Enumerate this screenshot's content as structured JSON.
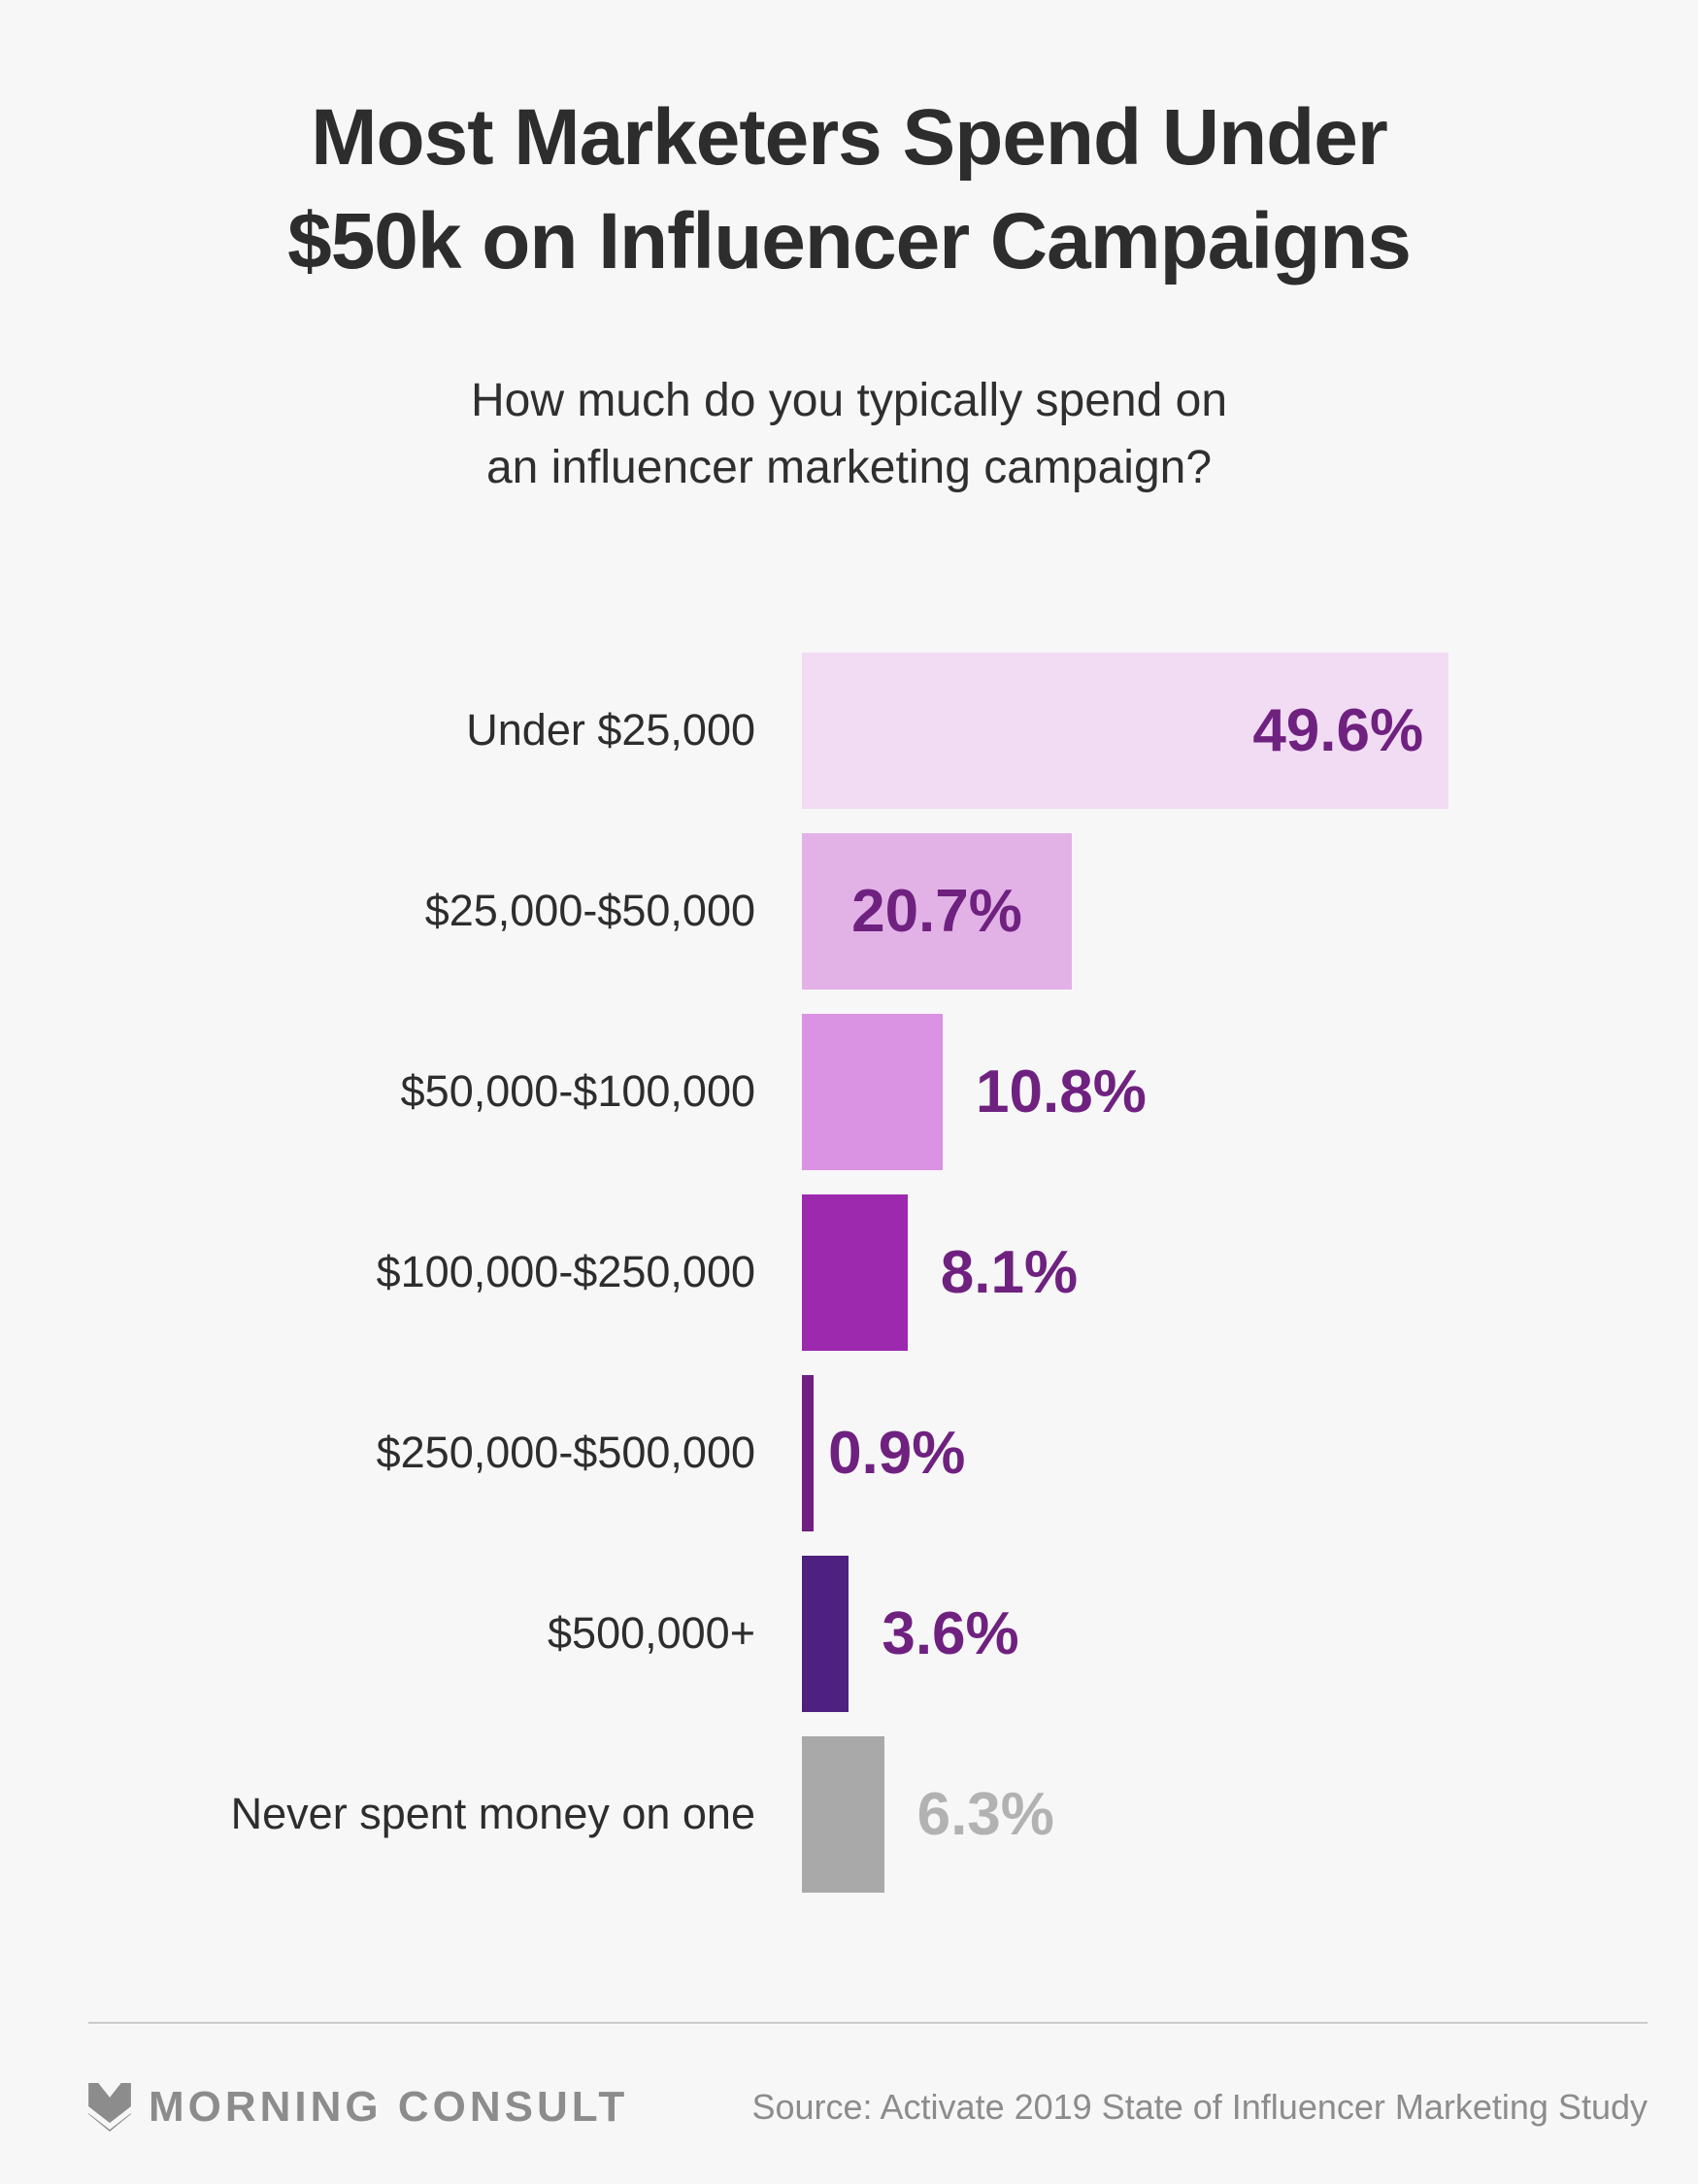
{
  "title_lines": [
    "Most Marketers Spend Under",
    "$50k on Influencer Campaigns"
  ],
  "subtitle_lines": [
    "How much do you typically spend on",
    "an influencer marketing campaign?"
  ],
  "chart_data": {
    "type": "bar",
    "orientation": "horizontal",
    "unit": "percent",
    "xlim": [
      0,
      49.6
    ],
    "grid": false,
    "categories": [
      "Under $25,000",
      "$25,000-$50,000",
      "$50,000-$100,000",
      "$100,000-$250,000",
      "$250,000-$500,000",
      "$500,000+",
      "Never spent money on one"
    ],
    "values": [
      49.6,
      20.7,
      10.8,
      8.1,
      0.9,
      3.6,
      6.3
    ],
    "bars": [
      {
        "label": "Under $25,000",
        "value": 49.6,
        "display": "49.6%",
        "color": "#f2dcf4",
        "value_color": "#6f2180",
        "value_placement": "inside-right"
      },
      {
        "label": "$25,000-$50,000",
        "value": 20.7,
        "display": "20.7%",
        "color": "#e2b2e7",
        "value_color": "#6f2180",
        "value_placement": "inside-center"
      },
      {
        "label": "$50,000-$100,000",
        "value": 10.8,
        "display": "10.8%",
        "color": "#d993e2",
        "value_color": "#6f2180",
        "value_placement": "outside"
      },
      {
        "label": "$100,000-$250,000",
        "value": 8.1,
        "display": "8.1%",
        "color": "#9c29ae",
        "value_color": "#6f2180",
        "value_placement": "outside"
      },
      {
        "label": "$250,000-$500,000",
        "value": 0.9,
        "display": "0.9%",
        "color": "#6f2080",
        "value_color": "#6f2180",
        "value_placement": "outside-tight"
      },
      {
        "label": "$500,000+",
        "value": 3.6,
        "display": "3.6%",
        "color": "#4e2181",
        "value_color": "#6f2180",
        "value_placement": "outside"
      },
      {
        "label": "Never spent money on one",
        "value": 6.3,
        "display": "6.3%",
        "color": "#a9a9aa",
        "value_color": "#b2b2b2",
        "value_placement": "outside"
      }
    ]
  },
  "footer": {
    "brand": "MORNING CONSULT",
    "source": "Source: Activate 2019 State of Influencer Marketing Study"
  },
  "colors": {
    "background": "#f7f7f7",
    "title_text": "#2d2d2d",
    "divider": "#cbcbcb",
    "footer_text": "#8c8c8c"
  }
}
